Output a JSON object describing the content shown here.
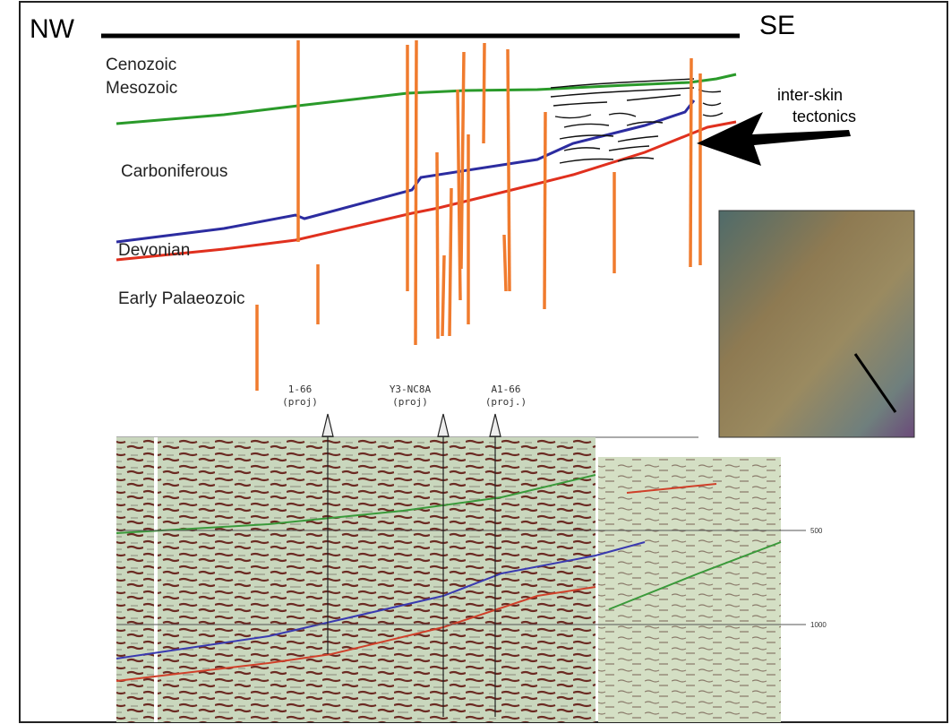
{
  "header": {
    "left": "NW",
    "right": "SE"
  },
  "units": [
    "Cenozoic",
    "Mesozoic",
    "Carboniferous",
    "Devonian",
    "Early Palaeozoic"
  ],
  "annotation": {
    "lines": [
      "inter-skin",
      "tectonics"
    ]
  },
  "wells": [
    {
      "name": "1-66",
      "note": "(proj)"
    },
    {
      "name": "Y3-NC8A",
      "note": "(proj)"
    },
    {
      "name": "A1-66",
      "note": "(proj.)"
    }
  ],
  "depths": [
    "500",
    "1000"
  ]
}
